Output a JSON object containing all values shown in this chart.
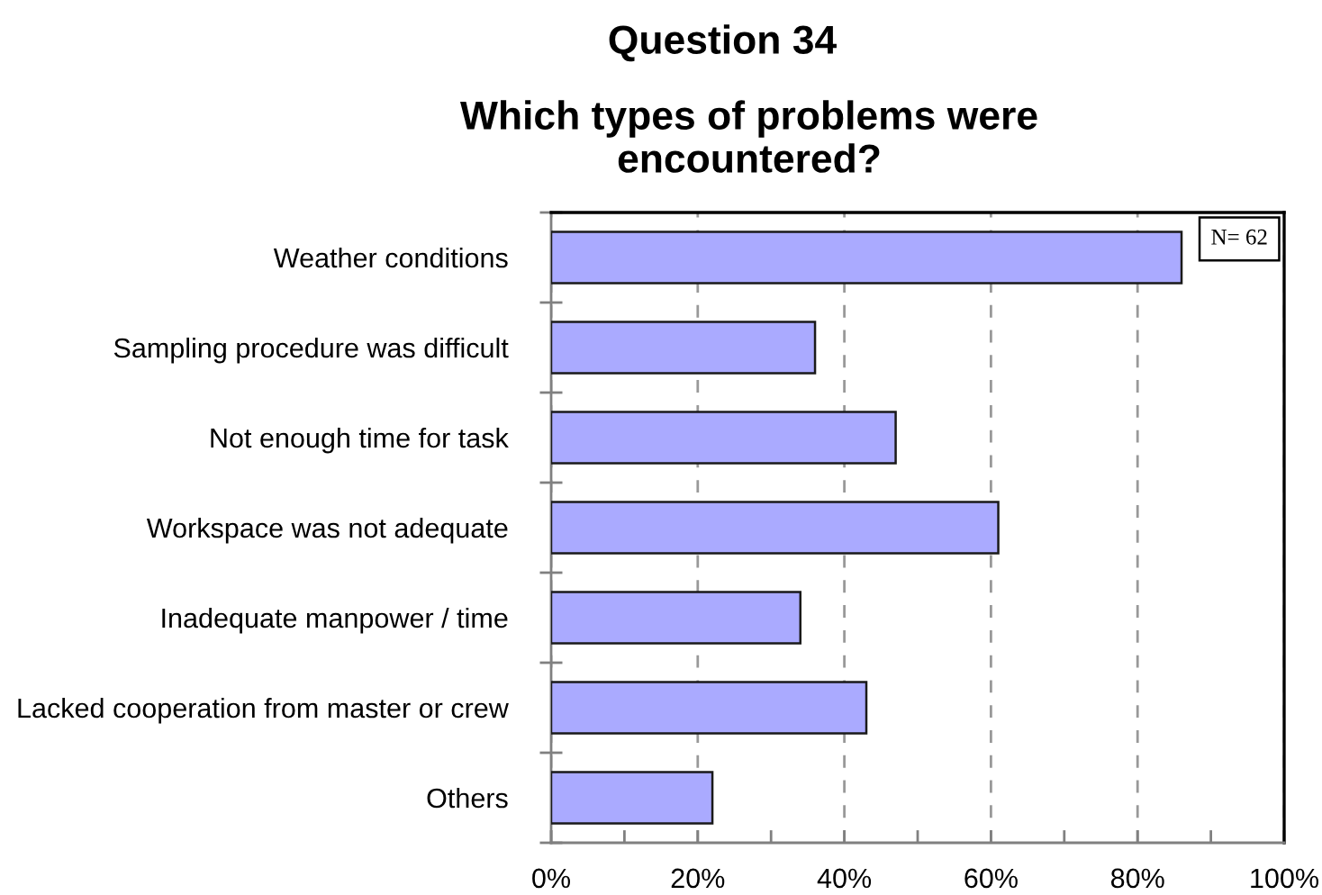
{
  "chart_data": {
    "type": "bar",
    "orientation": "horizontal",
    "title": "Question 34",
    "subtitle": "Which types of problems were\nencountered?",
    "categories": [
      "Weather conditions",
      "Sampling procedure was difficult",
      "Not enough time for task",
      "Workspace was not adequate",
      "Inadequate manpower / time",
      "Lacked cooperation from master or crew",
      "Others"
    ],
    "values": [
      86,
      36,
      47,
      61,
      34,
      43,
      22
    ],
    "color": "#aaaaff",
    "xlim": [
      0,
      100
    ],
    "xticks": [
      {
        "value": 0,
        "label": "0%"
      },
      {
        "value": 20,
        "label": "20%"
      },
      {
        "value": 40,
        "label": "40%"
      },
      {
        "value": 60,
        "label": "60%"
      },
      {
        "value": 80,
        "label": "80%"
      },
      {
        "value": 100,
        "label": "100%"
      }
    ],
    "grid": "x",
    "annotations": [
      "N= 62"
    ]
  }
}
